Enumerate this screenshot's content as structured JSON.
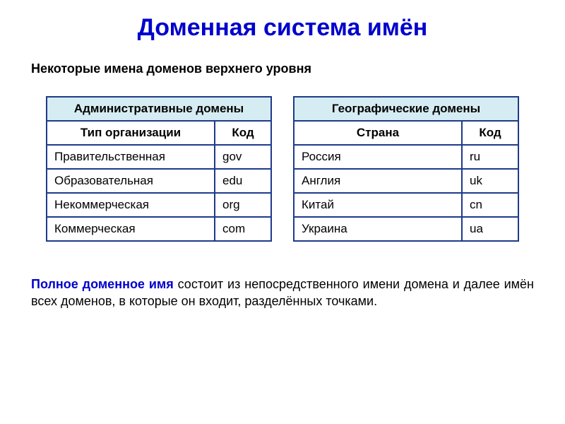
{
  "title": "Доменная система имён",
  "subtitle": "Некоторые имена доменов верхнего уровня",
  "colors": {
    "title_color": "#0000cd",
    "border_color": "#1e3a8a",
    "header_bg": "#d6ecf3",
    "background": "#ffffff",
    "text_color": "#000000"
  },
  "fontsize": {
    "title": 34,
    "subtitle": 18,
    "table": 17,
    "description": 18
  },
  "table_admin": {
    "title": "Административные домены",
    "col1": "Тип организации",
    "col2": "Код",
    "rows": [
      {
        "name": "Правительственная",
        "code": "gov"
      },
      {
        "name": "Образовательная",
        "code": "edu"
      },
      {
        "name": "Некоммерческая",
        "code": "org"
      },
      {
        "name": "Коммерческая",
        "code": "com"
      }
    ]
  },
  "table_geo": {
    "title": "Географические домены",
    "col1": "Страна",
    "col2": "Код",
    "rows": [
      {
        "name": "Россия",
        "code": "ru"
      },
      {
        "name": "Англия",
        "code": "uk"
      },
      {
        "name": "Китай",
        "code": "cn"
      },
      {
        "name": "Украина",
        "code": "ua"
      }
    ]
  },
  "description": {
    "bold": "Полное доменное имя",
    "rest": " состоит из непосредственного имени домена и далее имён всех доменов, в которые он входит, разделённых точками."
  }
}
